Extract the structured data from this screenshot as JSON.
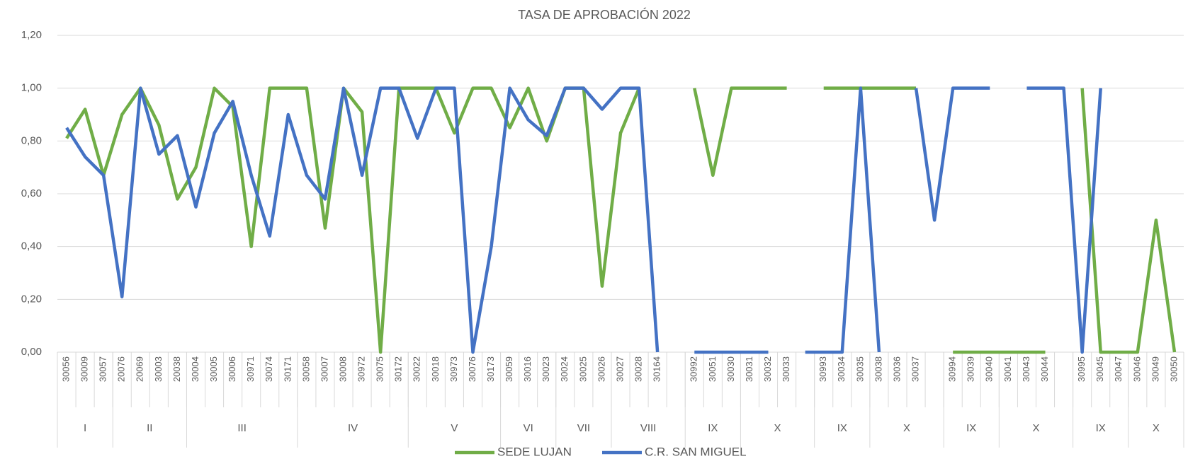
{
  "chart_data": {
    "type": "line",
    "title": "TASA DE APROBACIÓN 2022",
    "categories": [
      "30056",
      "30009",
      "30057",
      "20076",
      "20069",
      "30003",
      "20038",
      "30004",
      "30005",
      "30006",
      "30971",
      "30074",
      "30171",
      "30058",
      "30007",
      "30008",
      "30972",
      "30075",
      "30172",
      "30022",
      "30018",
      "30973",
      "30076",
      "30173",
      "30059",
      "30016",
      "30023",
      "30024",
      "30025",
      "30026",
      "30027",
      "30028",
      "30164",
      null,
      "30992",
      "30051",
      "30030",
      "30031",
      "30032",
      "30033",
      null,
      "30993",
      "30034",
      "30035",
      "30038",
      "30036",
      "30037",
      null,
      "30994",
      "30039",
      "30040",
      "30041",
      "30043",
      "30044",
      null,
      "30995",
      "30045",
      "30047",
      "30046",
      "30049",
      "30050"
    ],
    "groups": [
      {
        "label": "I",
        "count": 3
      },
      {
        "label": "II",
        "count": 4
      },
      {
        "label": "III",
        "count": 6
      },
      {
        "label": "IV",
        "count": 6
      },
      {
        "label": "V",
        "count": 5
      },
      {
        "label": "VI",
        "count": 3
      },
      {
        "label": "VII",
        "count": 3
      },
      {
        "label": "VIII",
        "count": 4
      },
      {
        "label": "IX",
        "count": 3
      },
      {
        "label": "X",
        "count": 4
      },
      {
        "label": "IX",
        "count": 3
      },
      {
        "label": "X",
        "count": 4
      },
      {
        "label": "IX",
        "count": 3
      },
      {
        "label": "X",
        "count": 4
      },
      {
        "label": "IX",
        "count": 3
      },
      {
        "label": "X",
        "count": 3
      }
    ],
    "series": [
      {
        "name": "SEDE LUJAN",
        "color": "#70ad47",
        "values": [
          0.81,
          0.92,
          0.67,
          0.9,
          1.0,
          0.86,
          0.58,
          0.7,
          1.0,
          0.93,
          0.4,
          1.0,
          1.0,
          1.0,
          0.47,
          1.0,
          0.91,
          0.0,
          1.0,
          1.0,
          1.0,
          0.83,
          1.0,
          1.0,
          0.85,
          1.0,
          0.8,
          1.0,
          1.0,
          0.25,
          0.83,
          1.0,
          null,
          null,
          1.0,
          0.67,
          1.0,
          1.0,
          1.0,
          1.0,
          null,
          1.0,
          1.0,
          1.0,
          1.0,
          1.0,
          1.0,
          null,
          0.0,
          0.0,
          0.0,
          0.0,
          0.0,
          0.0,
          null,
          1.0,
          0.0,
          0.0,
          0.0,
          0.5,
          0.0
        ]
      },
      {
        "name": "C.R. SAN MIGUEL",
        "color": "#4472c4",
        "values": [
          0.85,
          0.74,
          0.67,
          0.21,
          1.0,
          0.75,
          0.82,
          0.55,
          0.83,
          0.95,
          0.67,
          0.44,
          0.9,
          0.67,
          0.58,
          1.0,
          0.67,
          1.0,
          1.0,
          0.81,
          1.0,
          1.0,
          0.0,
          0.4,
          1.0,
          0.88,
          0.82,
          1.0,
          1.0,
          0.92,
          1.0,
          1.0,
          0.0,
          null,
          0.0,
          0.0,
          0.0,
          0.0,
          0.0,
          null,
          0.0,
          0.0,
          0.0,
          1.0,
          0.0,
          null,
          1.0,
          0.5,
          1.0,
          1.0,
          1.0,
          null,
          1.0,
          1.0,
          1.0,
          0.0,
          1.0,
          null,
          null,
          null,
          null
        ]
      }
    ],
    "ylim": [
      0,
      1.2
    ],
    "yticks": [
      {
        "value": 0,
        "label": "0,00"
      },
      {
        "value": 0.2,
        "label": "0,20"
      },
      {
        "value": 0.4,
        "label": "0,40"
      },
      {
        "value": 0.6,
        "label": "0,60"
      },
      {
        "value": 0.8,
        "label": "0,80"
      },
      {
        "value": 1,
        "label": "1,00"
      },
      {
        "value": 1.2,
        "label": "1,20"
      }
    ],
    "grid": true,
    "legend": "bottom"
  }
}
